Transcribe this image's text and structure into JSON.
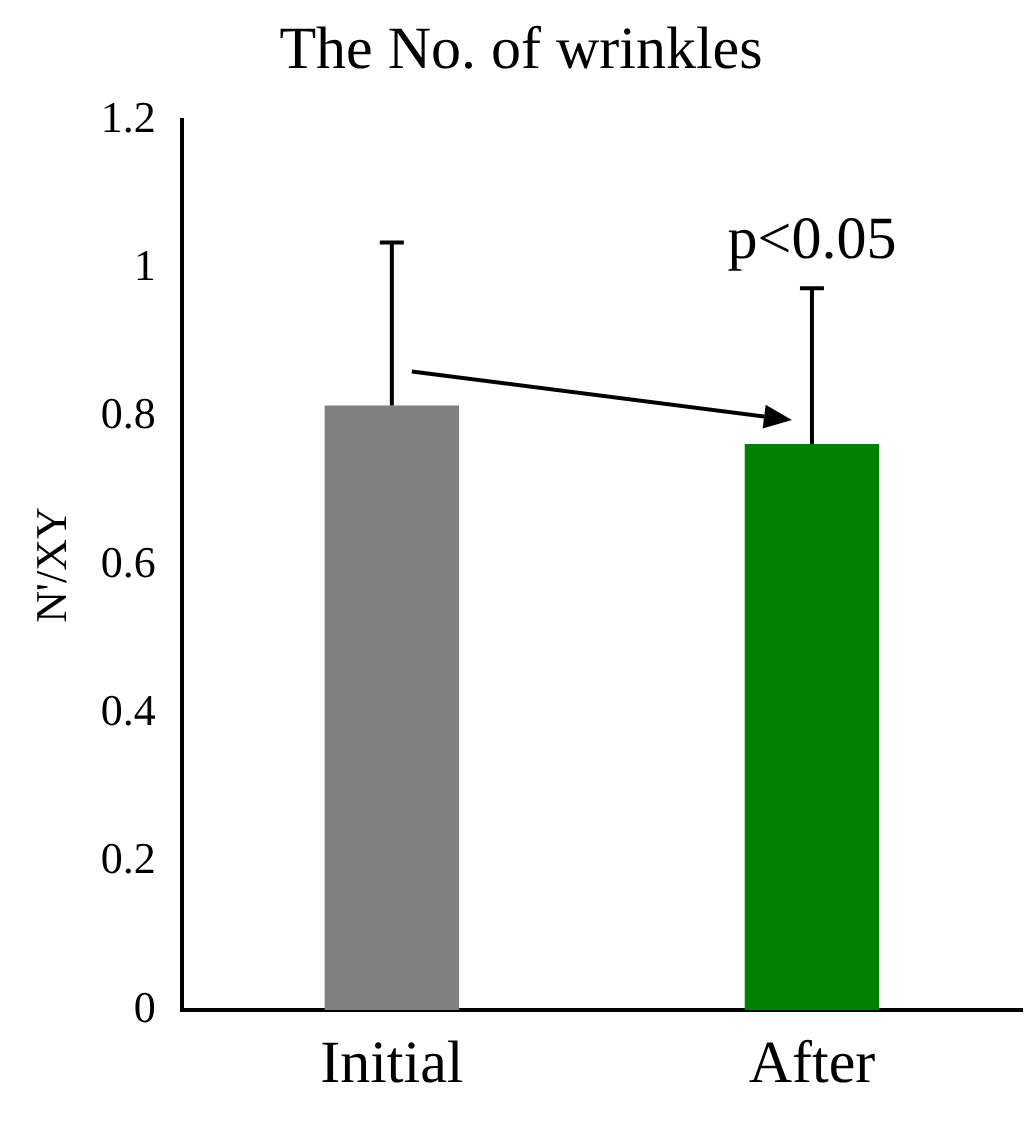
{
  "chart_data": {
    "type": "bar",
    "title": "The No. of wrinkles",
    "ylabel": "N'/XY",
    "categories": [
      "Initial",
      "After"
    ],
    "values": [
      0.815,
      0.763
    ],
    "colors": [
      "#808080",
      "#008000"
    ],
    "errors": [
      [
        0.815,
        1.035
      ],
      [
        0.763,
        0.973
      ]
    ],
    "ylim": [
      0,
      1.2
    ],
    "yticks": [
      0,
      0.2,
      0.4,
      0.6,
      0.8,
      1,
      1.2
    ],
    "grid": false,
    "legend": false,
    "annotations": [
      "p<0.05"
    ]
  }
}
